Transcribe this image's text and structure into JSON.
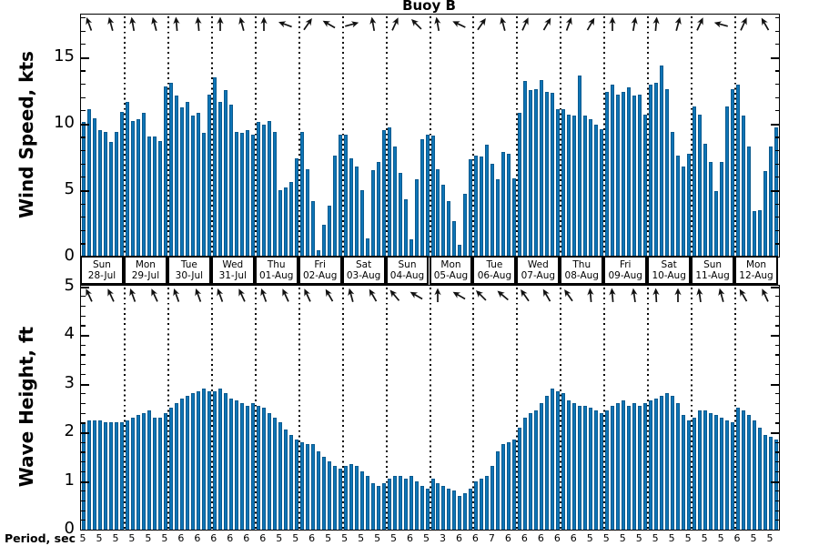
{
  "title": "Buoy B",
  "colors": {
    "bar_fill": "#0e74b6",
    "bar_edge": "#0a5a8e",
    "axis": "#000000",
    "arrow": "#111111"
  },
  "days": [
    {
      "weekday": "Sun",
      "date": "28-Jul"
    },
    {
      "weekday": "Mon",
      "date": "29-Jul"
    },
    {
      "weekday": "Tue",
      "date": "30-Jul"
    },
    {
      "weekday": "Wed",
      "date": "31-Jul"
    },
    {
      "weekday": "Thu",
      "date": "01-Aug"
    },
    {
      "weekday": "Fri",
      "date": "02-Aug"
    },
    {
      "weekday": "Sat",
      "date": "03-Aug"
    },
    {
      "weekday": "Sun",
      "date": "04-Aug"
    },
    {
      "weekday": "Mon",
      "date": "05-Aug"
    },
    {
      "weekday": "Tue",
      "date": "06-Aug"
    },
    {
      "weekday": "Wed",
      "date": "07-Aug"
    },
    {
      "weekday": "Thu",
      "date": "08-Aug"
    },
    {
      "weekday": "Fri",
      "date": "09-Aug"
    },
    {
      "weekday": "Sat",
      "date": "10-Aug"
    },
    {
      "weekday": "Sun",
      "date": "11-Aug"
    },
    {
      "weekday": "Mon",
      "date": "12-Aug"
    }
  ],
  "period": {
    "label": "Period, sec",
    "every_n_bars": 3,
    "values_sec": [
      5,
      5,
      5,
      5,
      5,
      5,
      6,
      6,
      6,
      6,
      6,
      6,
      5,
      5,
      6,
      5,
      5,
      5,
      5,
      5,
      6,
      5,
      3,
      6,
      6,
      7,
      6,
      6,
      6,
      6,
      6,
      5,
      5,
      5,
      5,
      5,
      5,
      5,
      5,
      5,
      6,
      5,
      5
    ]
  },
  "chart_data": [
    {
      "type": "bar",
      "title": "Buoy B",
      "ylabel": "Wind Speed, kts",
      "ylim": [
        0,
        18.2
      ],
      "yticks": [
        0,
        5,
        10,
        15
      ],
      "minor_tick_step": 1,
      "grid": "vertical dotted lines at day boundaries",
      "legend": "none",
      "samples_per_day": 8,
      "categories": [
        "28-Jul",
        "29-Jul",
        "30-Jul",
        "31-Jul",
        "01-Aug",
        "02-Aug",
        "03-Aug",
        "04-Aug",
        "05-Aug",
        "06-Aug",
        "07-Aug",
        "08-Aug",
        "09-Aug",
        "10-Aug",
        "11-Aug",
        "12-Aug"
      ],
      "values": [
        10.1,
        11.1,
        10.4,
        9.5,
        9.4,
        8.6,
        9.4,
        10.9,
        11.6,
        10.2,
        10.3,
        10.8,
        9.0,
        9.0,
        8.7,
        12.8,
        13.1,
        12.1,
        11.2,
        11.6,
        10.6,
        10.8,
        9.3,
        12.2,
        13.5,
        11.6,
        12.5,
        11.4,
        9.4,
        9.3,
        9.5,
        9.2,
        10.1,
        9.9,
        10.2,
        9.4,
        5.0,
        5.2,
        5.6,
        7.4,
        9.4,
        6.6,
        4.2,
        0.5,
        2.4,
        3.8,
        7.6,
        9.2,
        9.2,
        7.4,
        6.8,
        5.0,
        1.4,
        6.5,
        7.1,
        9.5,
        9.7,
        8.3,
        6.3,
        4.3,
        1.3,
        5.8,
        8.8,
        9.2,
        9.1,
        6.6,
        5.4,
        4.2,
        2.7,
        0.9,
        4.7,
        7.3,
        7.6,
        7.5,
        8.4,
        7.0,
        5.8,
        7.9,
        7.7,
        5.9,
        10.8,
        13.2,
        12.5,
        12.6,
        13.3,
        12.4,
        12.3,
        11.1,
        11.1,
        10.7,
        10.6,
        13.6,
        10.6,
        10.3,
        9.9,
        9.6,
        12.4,
        12.9,
        12.2,
        12.4,
        12.7,
        12.1,
        12.2,
        10.7,
        12.9,
        13.1,
        14.4,
        12.6,
        9.4,
        7.6,
        6.8,
        7.7,
        11.3,
        10.7,
        8.5,
        7.1,
        4.9,
        7.1,
        11.3,
        12.6,
        12.9,
        10.6,
        8.3,
        3.4,
        3.5,
        6.4,
        8.3,
        9.7
      ],
      "arrow_every_n_bars": 4,
      "arrow_angles_deg": [
        -20,
        -15,
        -10,
        -15,
        -5,
        -5,
        0,
        -15,
        0,
        -70,
        35,
        -60,
        75,
        -10,
        25,
        -45,
        -10,
        -65,
        35,
        -15,
        25,
        30,
        20,
        30,
        0,
        10,
        5,
        15,
        25,
        -75,
        25,
        -30
      ]
    },
    {
      "type": "bar",
      "ylabel": "Wave Height, ft",
      "ylim": [
        0,
        5.01
      ],
      "yticks": [
        0,
        1,
        2,
        3,
        4,
        5
      ],
      "minor_tick_step": 0.2,
      "grid": "vertical dotted lines at day boundaries",
      "legend": "none",
      "samples_per_day": 8,
      "categories": [
        "28-Jul",
        "29-Jul",
        "30-Jul",
        "31-Jul",
        "01-Aug",
        "02-Aug",
        "03-Aug",
        "04-Aug",
        "05-Aug",
        "06-Aug",
        "07-Aug",
        "08-Aug",
        "09-Aug",
        "10-Aug",
        "11-Aug",
        "12-Aug"
      ],
      "values": [
        2.2,
        2.25,
        2.25,
        2.25,
        2.2,
        2.2,
        2.2,
        2.2,
        2.25,
        2.3,
        2.35,
        2.4,
        2.45,
        2.3,
        2.3,
        2.4,
        2.5,
        2.6,
        2.7,
        2.75,
        2.8,
        2.85,
        2.9,
        2.85,
        2.85,
        2.9,
        2.8,
        2.7,
        2.65,
        2.6,
        2.55,
        2.6,
        2.55,
        2.5,
        2.4,
        2.3,
        2.2,
        2.05,
        1.95,
        1.85,
        1.8,
        1.75,
        1.75,
        1.6,
        1.5,
        1.4,
        1.3,
        1.25,
        1.3,
        1.35,
        1.3,
        1.2,
        1.1,
        0.95,
        0.9,
        0.95,
        1.05,
        1.1,
        1.1,
        1.05,
        1.1,
        1.0,
        0.9,
        0.85,
        1.05,
        0.95,
        0.9,
        0.85,
        0.8,
        0.7,
        0.75,
        0.85,
        1.0,
        1.05,
        1.1,
        1.3,
        1.6,
        1.75,
        1.8,
        1.85,
        2.1,
        2.3,
        2.4,
        2.45,
        2.6,
        2.75,
        2.9,
        2.85,
        2.8,
        2.65,
        2.6,
        2.55,
        2.55,
        2.5,
        2.45,
        2.4,
        2.45,
        2.55,
        2.6,
        2.65,
        2.55,
        2.6,
        2.55,
        2.6,
        2.65,
        2.7,
        2.75,
        2.8,
        2.75,
        2.6,
        2.35,
        2.25,
        2.3,
        2.45,
        2.45,
        2.4,
        2.35,
        2.3,
        2.25,
        2.2,
        2.5,
        2.45,
        2.35,
        2.25,
        2.1,
        1.95,
        1.9,
        1.85
      ],
      "arrow_every_n_bars": 4,
      "arrow_angles_deg": [
        -25,
        -25,
        -20,
        -25,
        -20,
        -20,
        -20,
        -25,
        -20,
        -25,
        -25,
        -30,
        -15,
        -30,
        -40,
        -60,
        0,
        -60,
        -45,
        -50,
        -35,
        -30,
        -35,
        -5,
        -5,
        -8,
        -3,
        0,
        -8,
        -15,
        -30,
        -25
      ]
    }
  ]
}
